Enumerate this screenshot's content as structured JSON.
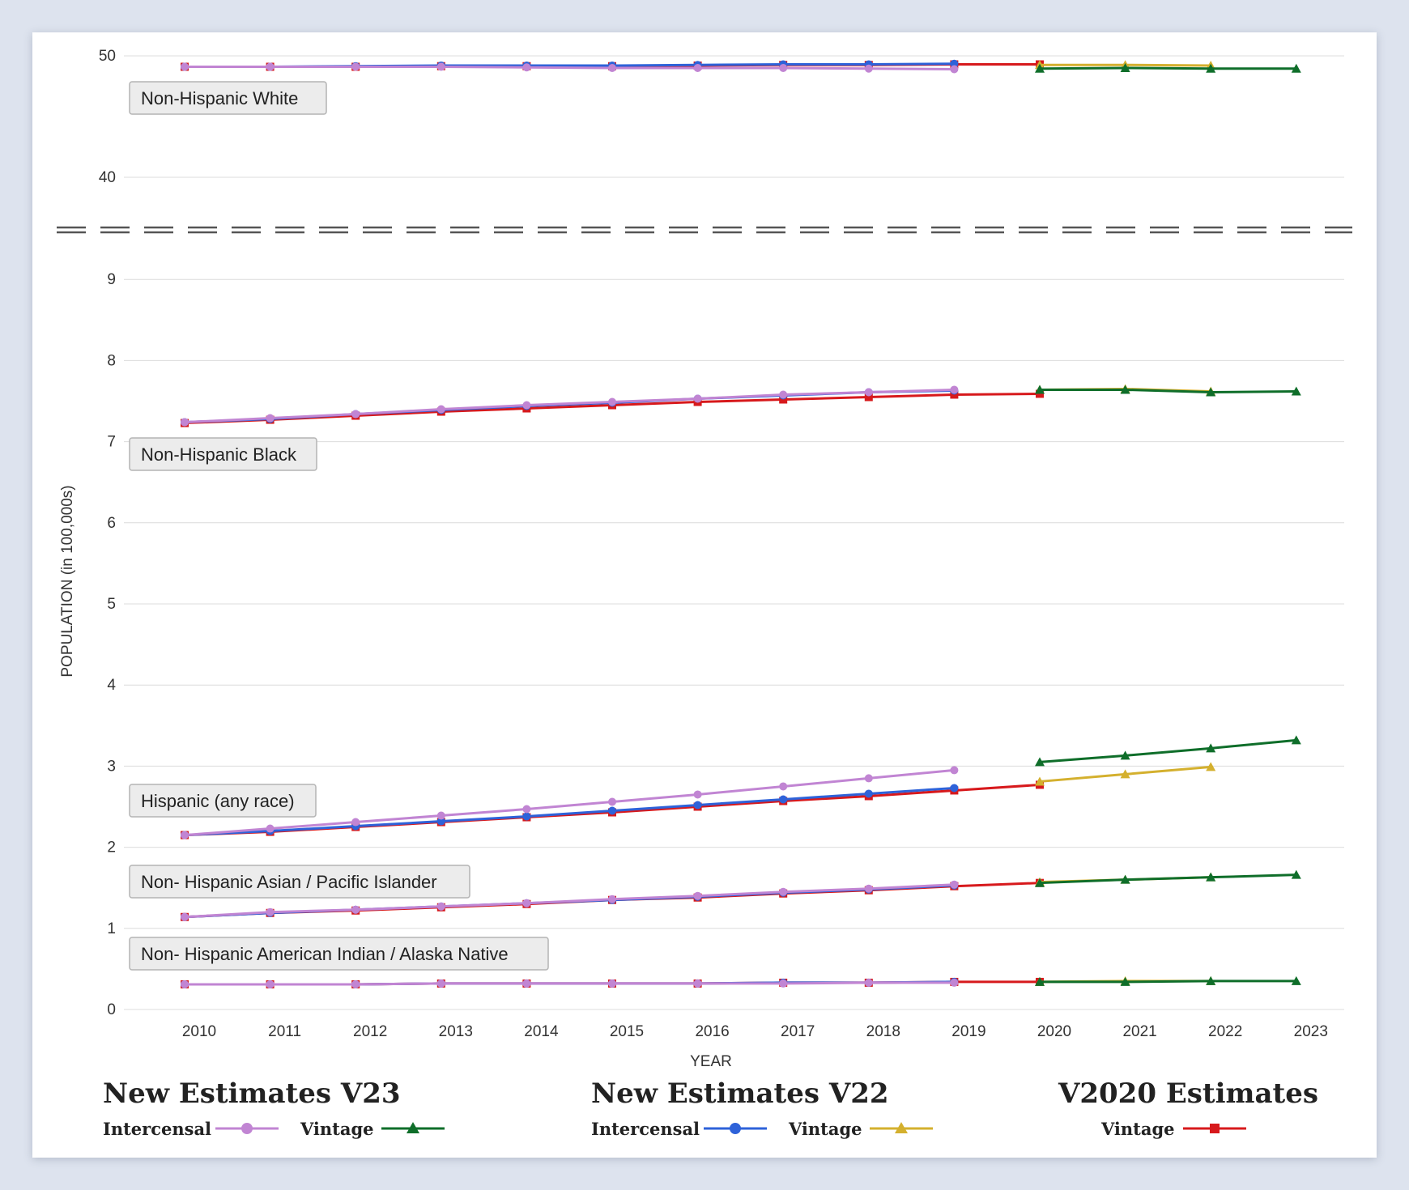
{
  "chart_data": {
    "type": "line",
    "xlabel": "YEAR",
    "ylabel": "POPULATION (in 100,000s)",
    "x": [
      2010,
      2011,
      2012,
      2013,
      2014,
      2015,
      2016,
      2017,
      2018,
      2019,
      2020,
      2021,
      2022,
      2023
    ],
    "y_ticks_lower": [
      0,
      1,
      2,
      3,
      4,
      5,
      6,
      7,
      8,
      9
    ],
    "y_ticks_upper": [
      40,
      50
    ],
    "axis_break": true,
    "grid": true,
    "colors": {
      "v23_intercensal": "#c185d3",
      "v23_vintage": "#0f6e2a",
      "v22_intercensal": "#2e62d9",
      "v22_vintage": "#d4b02e",
      "v2020_vintage": "#d7191c"
    },
    "groups": [
      {
        "label": "Non-Hispanic White",
        "series": {
          "v23_intercensal": [
            49.1,
            49.1,
            49.1,
            49.1,
            49.05,
            49.0,
            49.0,
            49.0,
            48.95,
            48.9
          ],
          "v22_intercensal": [
            49.1,
            49.1,
            49.15,
            49.2,
            49.2,
            49.2,
            49.25,
            49.3,
            49.3,
            49.35
          ],
          "v2020_vintage": [
            49.1,
            49.1,
            49.1,
            49.15,
            49.15,
            49.15,
            49.2,
            49.25,
            49.25,
            49.3,
            49.3
          ],
          "v23_vintage": [
            48.95,
            49.0,
            48.95,
            48.95
          ],
          "v22_vintage": [
            49.25,
            49.25,
            49.2
          ]
        }
      },
      {
        "label": "Non-Hispanic Black",
        "series": {
          "v23_intercensal": [
            7.24,
            7.29,
            7.34,
            7.4,
            7.45,
            7.49,
            7.53,
            7.58,
            7.61,
            7.64
          ],
          "v22_intercensal": [
            7.24,
            7.28,
            7.34,
            7.39,
            7.44,
            7.48,
            7.53,
            7.57,
            7.61,
            7.63
          ],
          "v2020_vintage": [
            7.23,
            7.27,
            7.32,
            7.37,
            7.41,
            7.45,
            7.49,
            7.52,
            7.55,
            7.58,
            7.59
          ],
          "v23_vintage": [
            7.64,
            7.64,
            7.61,
            7.62
          ],
          "v22_vintage": [
            7.64,
            7.65,
            7.62
          ]
        }
      },
      {
        "label": "Hispanic (any race)",
        "series": {
          "v23_intercensal": [
            2.15,
            2.23,
            2.31,
            2.39,
            2.47,
            2.56,
            2.65,
            2.75,
            2.85,
            2.95
          ],
          "v22_intercensal": [
            2.15,
            2.2,
            2.26,
            2.32,
            2.38,
            2.45,
            2.52,
            2.59,
            2.66,
            2.73
          ],
          "v2020_vintage": [
            2.15,
            2.19,
            2.25,
            2.31,
            2.37,
            2.43,
            2.5,
            2.57,
            2.63,
            2.7,
            2.77
          ],
          "v23_vintage": [
            3.05,
            3.13,
            3.22,
            3.32
          ],
          "v22_vintage": [
            2.81,
            2.9,
            2.99
          ]
        }
      },
      {
        "label": "Non- Hispanic Asian / Pacific Islander",
        "series": {
          "v23_intercensal": [
            1.14,
            1.2,
            1.23,
            1.27,
            1.31,
            1.36,
            1.4,
            1.45,
            1.49,
            1.54
          ],
          "v22_intercensal": [
            1.14,
            1.19,
            1.23,
            1.27,
            1.31,
            1.35,
            1.39,
            1.44,
            1.48,
            1.53
          ],
          "v2020_vintage": [
            1.14,
            1.19,
            1.22,
            1.26,
            1.3,
            1.35,
            1.38,
            1.43,
            1.47,
            1.52,
            1.56
          ],
          "v23_vintage": [
            1.56,
            1.6,
            1.63,
            1.66
          ],
          "v22_vintage": [
            1.57,
            1.6,
            1.63
          ]
        }
      },
      {
        "label": "Non- Hispanic American Indian / Alaska Native",
        "series": {
          "v23_intercensal": [
            0.31,
            0.31,
            0.31,
            0.32,
            0.32,
            0.32,
            0.32,
            0.32,
            0.33,
            0.33
          ],
          "v22_intercensal": [
            0.31,
            0.31,
            0.31,
            0.32,
            0.32,
            0.32,
            0.32,
            0.33,
            0.33,
            0.34
          ],
          "v2020_vintage": [
            0.31,
            0.31,
            0.31,
            0.32,
            0.32,
            0.32,
            0.32,
            0.33,
            0.33,
            0.34,
            0.34
          ],
          "v23_vintage": [
            0.34,
            0.34,
            0.35,
            0.35
          ],
          "v22_vintage": [
            0.34,
            0.35,
            0.35
          ]
        }
      }
    ],
    "legend": [
      {
        "title": "New Estimates V23",
        "items": [
          {
            "label": "Intercensal",
            "key": "v23_intercensal",
            "marker": "circle"
          },
          {
            "label": "Vintage",
            "key": "v23_vintage",
            "marker": "triangle"
          }
        ]
      },
      {
        "title": "New Estimates V22",
        "items": [
          {
            "label": "Intercensal",
            "key": "v22_intercensal",
            "marker": "circle"
          },
          {
            "label": "Vintage",
            "key": "v22_vintage",
            "marker": "triangle"
          }
        ]
      },
      {
        "title": "V2020 Estimates",
        "items": [
          {
            "label": "Vintage",
            "key": "v2020_vintage",
            "marker": "square"
          }
        ]
      }
    ]
  }
}
